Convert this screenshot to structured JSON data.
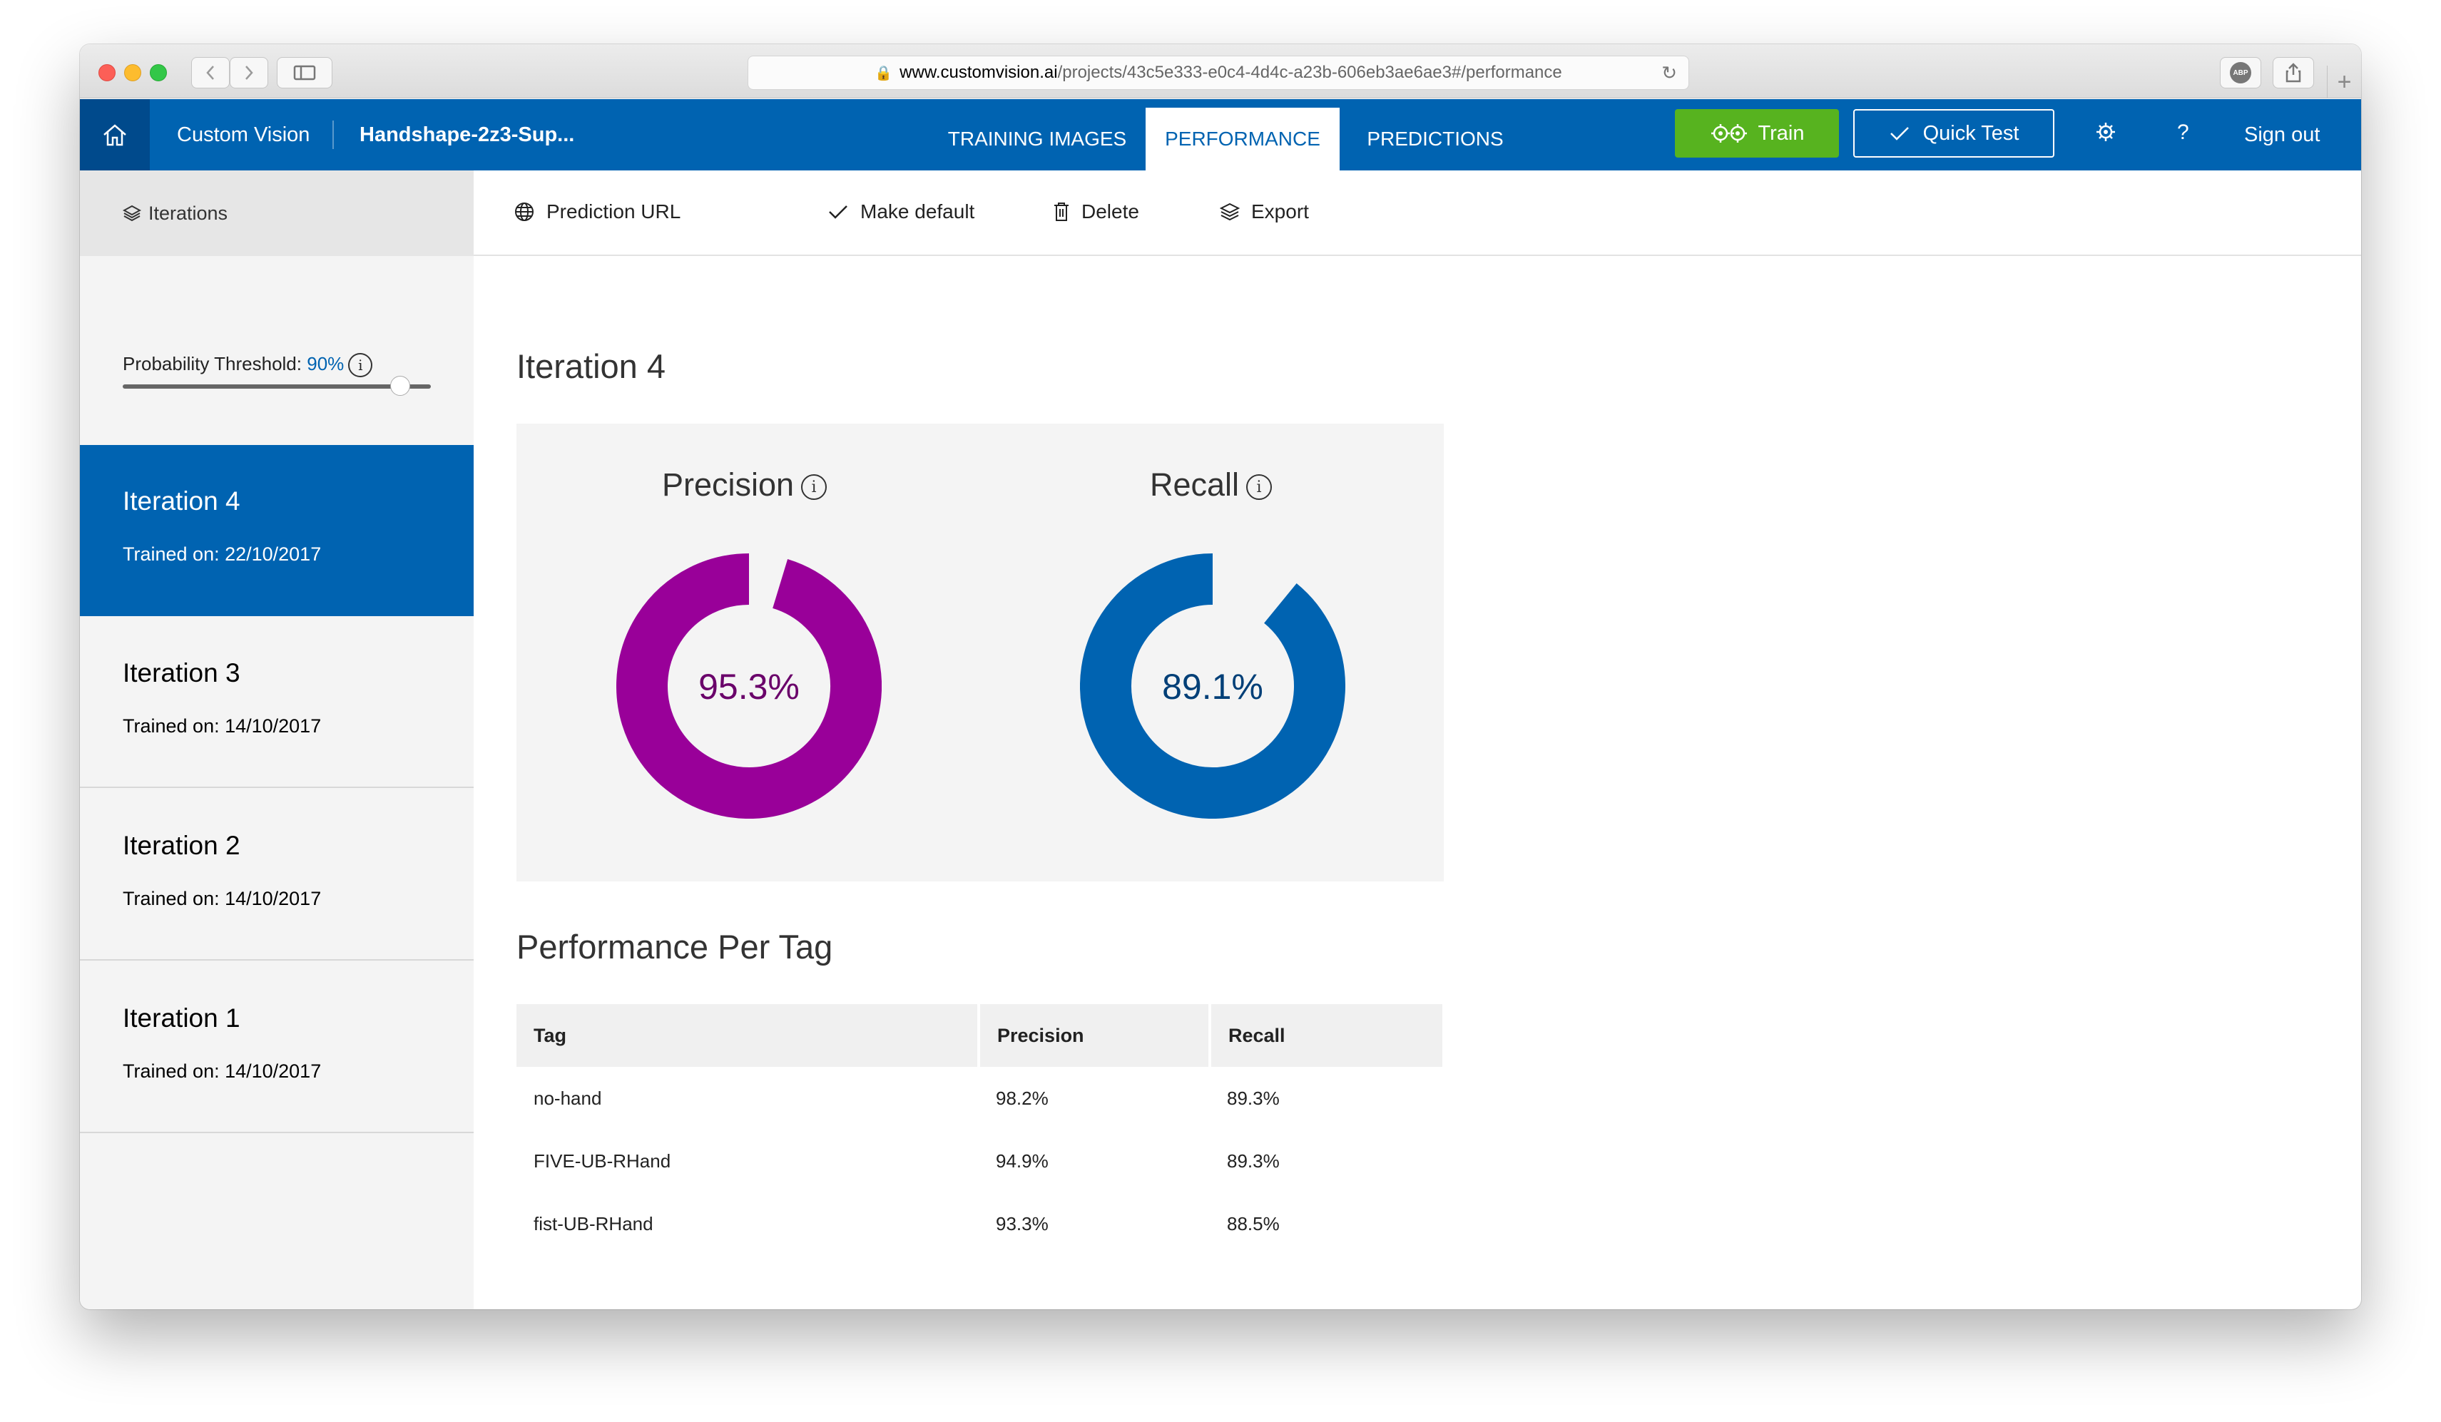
{
  "browser": {
    "url_host": "www.customvision.ai",
    "url_path": "/projects/43c5e333-e0c4-4d4c-a23b-606eb3ae6ae3#/performance",
    "adblock_label": "ABP"
  },
  "header": {
    "brand": "Custom Vision",
    "project": "Handshape-2z3-Sup...",
    "tabs": [
      {
        "label": "TRAINING IMAGES",
        "active": false
      },
      {
        "label": "PERFORMANCE",
        "active": true
      },
      {
        "label": "PREDICTIONS",
        "active": false
      }
    ],
    "train_label": "Train",
    "quick_test_label": "Quick Test",
    "help_label": "?",
    "sign_out_label": "Sign out"
  },
  "sidebar": {
    "title": "Iterations",
    "threshold_label": "Probability Threshold:",
    "threshold_value": "90%",
    "threshold_level": 0.9,
    "iterations": [
      {
        "name": "Iteration 4",
        "trained": "Trained on: 22/10/2017",
        "active": true
      },
      {
        "name": "Iteration 3",
        "trained": "Trained on: 14/10/2017",
        "active": false
      },
      {
        "name": "Iteration 2",
        "trained": "Trained on: 14/10/2017",
        "active": false
      },
      {
        "name": "Iteration 1",
        "trained": "Trained on: 14/10/2017",
        "active": false
      }
    ]
  },
  "toolbar": {
    "prediction_url": "Prediction URL",
    "make_default": "Make default",
    "delete": "Delete",
    "export": "Export"
  },
  "main": {
    "iteration_title": "Iteration 4",
    "precision_label": "Precision",
    "precision_value": "95.3%",
    "precision_fraction": 0.953,
    "recall_label": "Recall",
    "recall_value": "89.1%",
    "recall_fraction": 0.891,
    "per_tag_title": "Performance Per Tag",
    "table_headers": [
      "Tag",
      "Precision",
      "Recall"
    ],
    "table_rows": [
      [
        "no-hand",
        "98.2%",
        "89.3%"
      ],
      [
        "FIVE-UB-RHand",
        "94.9%",
        "89.3%"
      ],
      [
        "fist-UB-RHand",
        "93.3%",
        "88.5%"
      ]
    ]
  },
  "colors": {
    "accent": "#0063b1",
    "precision": "#990099",
    "recall": "#0063b1",
    "train": "#57b31f"
  }
}
